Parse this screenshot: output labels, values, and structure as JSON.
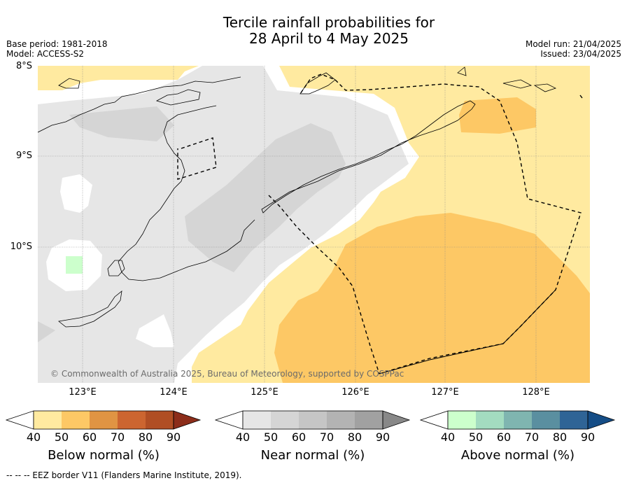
{
  "title_line1": "Tercile rainfall probabilities for",
  "title_line2": "28 April to 4 May 2025",
  "base_period": "Base period: 1981-2018",
  "model": "Model: ACCESS-S2",
  "model_run": "Model run: 21/04/2025",
  "issued": "Issued: 23/04/2025",
  "lat_labels": [
    "8°S",
    "9°S",
    "10°S"
  ],
  "lon_labels": [
    "123°E",
    "124°E",
    "125°E",
    "126°E",
    "127°E",
    "128°E"
  ],
  "copyright": "© Commonwealth of Australia 2025, Bureau of Meteorology, supported by COSPPac",
  "footer": "--  --  -- EEZ border V11 (Flanders Marine Institute, 2019).",
  "colorbars": [
    {
      "title": "Below normal (%)",
      "ticks": [
        "40",
        "50",
        "60",
        "70",
        "80",
        "90"
      ],
      "colors": [
        "#ffffff",
        "#ffeaa0",
        "#fdc865",
        "#e09443",
        "#cc6530",
        "#b04e24",
        "#8c2d1a"
      ]
    },
    {
      "title": "Near normal (%)",
      "ticks": [
        "40",
        "50",
        "60",
        "70",
        "80",
        "90"
      ],
      "colors": [
        "#ffffff",
        "#e6e6e6",
        "#d5d5d5",
        "#c5c5c5",
        "#b3b3b3",
        "#a1a1a1",
        "#888888"
      ]
    },
    {
      "title": "Above normal (%)",
      "ticks": [
        "40",
        "50",
        "60",
        "70",
        "80",
        "90"
      ],
      "colors": [
        "#ffffff",
        "#ccffcc",
        "#a3dcc0",
        "#7fb5b0",
        "#5a8fa0",
        "#2f6496",
        "#154d86"
      ]
    }
  ],
  "colors": {
    "below_50": "#ffeaa0",
    "below_60": "#fdc865",
    "near_50": "#e6e6e6",
    "near_60": "#d5d5d5",
    "above_50": "#ccffcc"
  }
}
